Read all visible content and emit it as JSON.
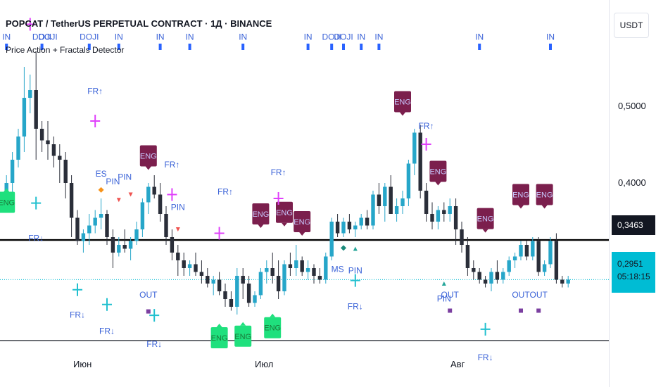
{
  "header": {
    "symbol_title": "POPCAT / TetherUS PERPETUAL CONTRACT · 1Д · BINANCE",
    "indicator_title": "Price Action + Fractals Detector"
  },
  "price_scale": {
    "unit_button": "USDT",
    "ticks": [
      "0,5000",
      "0,4000"
    ],
    "hline_label": "0,3463",
    "last_price": "0,2951",
    "countdown": "05:18:15"
  },
  "time_axis": {
    "labels": [
      "Июн",
      "Июл",
      "Авг"
    ]
  },
  "colors": {
    "up": "#26a6c9",
    "down": "#2a2e39",
    "eng_bear": "#7b1f4d",
    "eng_bull": "#1fe07d",
    "label_text": "#3a62d7",
    "inside_marker": "#2962ff",
    "fractal_up": "#e040fb",
    "fractal_down": "#22c0cf",
    "last_line": "#00bcd4"
  },
  "chart_data": {
    "type": "candlestick",
    "ylim": [
      0.22,
      0.62
    ],
    "hline": 0.3463,
    "last": 0.2951,
    "candles": [
      {
        "o": 0.4,
        "h": 0.43,
        "l": 0.39,
        "c": 0.42
      },
      {
        "o": 0.42,
        "h": 0.46,
        "l": 0.4,
        "c": 0.45
      },
      {
        "o": 0.45,
        "h": 0.49,
        "l": 0.44,
        "c": 0.48
      },
      {
        "o": 0.48,
        "h": 0.57,
        "l": 0.46,
        "c": 0.53
      },
      {
        "o": 0.53,
        "h": 0.56,
        "l": 0.51,
        "c": 0.54
      },
      {
        "o": 0.54,
        "h": 0.59,
        "l": 0.45,
        "c": 0.49
      },
      {
        "o": 0.49,
        "h": 0.5,
        "l": 0.46,
        "c": 0.475
      },
      {
        "o": 0.475,
        "h": 0.5,
        "l": 0.45,
        "c": 0.47
      },
      {
        "o": 0.47,
        "h": 0.48,
        "l": 0.44,
        "c": 0.455
      },
      {
        "o": 0.455,
        "h": 0.47,
        "l": 0.42,
        "c": 0.45
      },
      {
        "o": 0.45,
        "h": 0.46,
        "l": 0.4,
        "c": 0.42
      },
      {
        "o": 0.42,
        "h": 0.43,
        "l": 0.35,
        "c": 0.375
      },
      {
        "o": 0.375,
        "h": 0.385,
        "l": 0.34,
        "c": 0.345
      },
      {
        "o": 0.345,
        "h": 0.36,
        "l": 0.33,
        "c": 0.355
      },
      {
        "o": 0.355,
        "h": 0.38,
        "l": 0.34,
        "c": 0.365
      },
      {
        "o": 0.365,
        "h": 0.385,
        "l": 0.355,
        "c": 0.375
      },
      {
        "o": 0.375,
        "h": 0.4,
        "l": 0.36,
        "c": 0.38
      },
      {
        "o": 0.38,
        "h": 0.385,
        "l": 0.34,
        "c": 0.35
      },
      {
        "o": 0.35,
        "h": 0.36,
        "l": 0.31,
        "c": 0.33
      },
      {
        "o": 0.33,
        "h": 0.35,
        "l": 0.325,
        "c": 0.34
      },
      {
        "o": 0.34,
        "h": 0.36,
        "l": 0.33,
        "c": 0.335
      },
      {
        "o": 0.335,
        "h": 0.35,
        "l": 0.32,
        "c": 0.345
      },
      {
        "o": 0.345,
        "h": 0.37,
        "l": 0.34,
        "c": 0.36
      },
      {
        "o": 0.36,
        "h": 0.4,
        "l": 0.35,
        "c": 0.395
      },
      {
        "o": 0.395,
        "h": 0.42,
        "l": 0.38,
        "c": 0.415
      },
      {
        "o": 0.415,
        "h": 0.43,
        "l": 0.4,
        "c": 0.405
      },
      {
        "o": 0.405,
        "h": 0.42,
        "l": 0.37,
        "c": 0.38
      },
      {
        "o": 0.38,
        "h": 0.39,
        "l": 0.34,
        "c": 0.35
      },
      {
        "o": 0.35,
        "h": 0.36,
        "l": 0.32,
        "c": 0.33
      },
      {
        "o": 0.33,
        "h": 0.34,
        "l": 0.3,
        "c": 0.32
      },
      {
        "o": 0.32,
        "h": 0.33,
        "l": 0.3,
        "c": 0.31
      },
      {
        "o": 0.31,
        "h": 0.32,
        "l": 0.3,
        "c": 0.315
      },
      {
        "o": 0.315,
        "h": 0.33,
        "l": 0.3,
        "c": 0.305
      },
      {
        "o": 0.305,
        "h": 0.32,
        "l": 0.29,
        "c": 0.3
      },
      {
        "o": 0.3,
        "h": 0.31,
        "l": 0.285,
        "c": 0.29
      },
      {
        "o": 0.29,
        "h": 0.3,
        "l": 0.275,
        "c": 0.295
      },
      {
        "o": 0.295,
        "h": 0.305,
        "l": 0.275,
        "c": 0.28
      },
      {
        "o": 0.28,
        "h": 0.29,
        "l": 0.26,
        "c": 0.27
      },
      {
        "o": 0.27,
        "h": 0.28,
        "l": 0.255,
        "c": 0.26
      },
      {
        "o": 0.26,
        "h": 0.31,
        "l": 0.25,
        "c": 0.3
      },
      {
        "o": 0.3,
        "h": 0.31,
        "l": 0.27,
        "c": 0.29
      },
      {
        "o": 0.29,
        "h": 0.3,
        "l": 0.26,
        "c": 0.265
      },
      {
        "o": 0.265,
        "h": 0.28,
        "l": 0.26,
        "c": 0.275
      },
      {
        "o": 0.275,
        "h": 0.31,
        "l": 0.27,
        "c": 0.305
      },
      {
        "o": 0.305,
        "h": 0.32,
        "l": 0.29,
        "c": 0.31
      },
      {
        "o": 0.31,
        "h": 0.33,
        "l": 0.29,
        "c": 0.3
      },
      {
        "o": 0.3,
        "h": 0.32,
        "l": 0.27,
        "c": 0.28
      },
      {
        "o": 0.28,
        "h": 0.32,
        "l": 0.275,
        "c": 0.315
      },
      {
        "o": 0.315,
        "h": 0.33,
        "l": 0.3,
        "c": 0.31
      },
      {
        "o": 0.31,
        "h": 0.34,
        "l": 0.3,
        "c": 0.32
      },
      {
        "o": 0.32,
        "h": 0.325,
        "l": 0.3,
        "c": 0.305
      },
      {
        "o": 0.305,
        "h": 0.32,
        "l": 0.295,
        "c": 0.31
      },
      {
        "o": 0.31,
        "h": 0.315,
        "l": 0.29,
        "c": 0.3
      },
      {
        "o": 0.3,
        "h": 0.31,
        "l": 0.29,
        "c": 0.295
      },
      {
        "o": 0.295,
        "h": 0.33,
        "l": 0.29,
        "c": 0.325
      },
      {
        "o": 0.325,
        "h": 0.375,
        "l": 0.32,
        "c": 0.37
      },
      {
        "o": 0.37,
        "h": 0.38,
        "l": 0.35,
        "c": 0.355
      },
      {
        "o": 0.355,
        "h": 0.375,
        "l": 0.35,
        "c": 0.37
      },
      {
        "o": 0.37,
        "h": 0.38,
        "l": 0.355,
        "c": 0.36
      },
      {
        "o": 0.36,
        "h": 0.37,
        "l": 0.35,
        "c": 0.365
      },
      {
        "o": 0.365,
        "h": 0.38,
        "l": 0.36,
        "c": 0.375
      },
      {
        "o": 0.375,
        "h": 0.385,
        "l": 0.36,
        "c": 0.365
      },
      {
        "o": 0.365,
        "h": 0.41,
        "l": 0.36,
        "c": 0.405
      },
      {
        "o": 0.405,
        "h": 0.42,
        "l": 0.38,
        "c": 0.39
      },
      {
        "o": 0.39,
        "h": 0.42,
        "l": 0.37,
        "c": 0.415
      },
      {
        "o": 0.415,
        "h": 0.43,
        "l": 0.38,
        "c": 0.38
      },
      {
        "o": 0.38,
        "h": 0.4,
        "l": 0.37,
        "c": 0.39
      },
      {
        "o": 0.39,
        "h": 0.41,
        "l": 0.38,
        "c": 0.4
      },
      {
        "o": 0.4,
        "h": 0.45,
        "l": 0.39,
        "c": 0.445
      },
      {
        "o": 0.445,
        "h": 0.49,
        "l": 0.43,
        "c": 0.485
      },
      {
        "o": 0.485,
        "h": 0.495,
        "l": 0.4,
        "c": 0.41
      },
      {
        "o": 0.41,
        "h": 0.42,
        "l": 0.37,
        "c": 0.38
      },
      {
        "o": 0.38,
        "h": 0.395,
        "l": 0.36,
        "c": 0.37
      },
      {
        "o": 0.37,
        "h": 0.39,
        "l": 0.36,
        "c": 0.385
      },
      {
        "o": 0.385,
        "h": 0.395,
        "l": 0.37,
        "c": 0.38
      },
      {
        "o": 0.38,
        "h": 0.4,
        "l": 0.37,
        "c": 0.39
      },
      {
        "o": 0.39,
        "h": 0.4,
        "l": 0.34,
        "c": 0.36
      },
      {
        "o": 0.36,
        "h": 0.37,
        "l": 0.33,
        "c": 0.34
      },
      {
        "o": 0.34,
        "h": 0.35,
        "l": 0.3,
        "c": 0.31
      },
      {
        "o": 0.31,
        "h": 0.32,
        "l": 0.295,
        "c": 0.305
      },
      {
        "o": 0.305,
        "h": 0.31,
        "l": 0.29,
        "c": 0.295
      },
      {
        "o": 0.295,
        "h": 0.3,
        "l": 0.285,
        "c": 0.29
      },
      {
        "o": 0.29,
        "h": 0.31,
        "l": 0.28,
        "c": 0.305
      },
      {
        "o": 0.305,
        "h": 0.32,
        "l": 0.29,
        "c": 0.295
      },
      {
        "o": 0.295,
        "h": 0.31,
        "l": 0.29,
        "c": 0.305
      },
      {
        "o": 0.305,
        "h": 0.325,
        "l": 0.3,
        "c": 0.32
      },
      {
        "o": 0.32,
        "h": 0.33,
        "l": 0.31,
        "c": 0.325
      },
      {
        "o": 0.325,
        "h": 0.345,
        "l": 0.32,
        "c": 0.34
      },
      {
        "o": 0.34,
        "h": 0.345,
        "l": 0.32,
        "c": 0.325
      },
      {
        "o": 0.325,
        "h": 0.35,
        "l": 0.32,
        "c": 0.345
      },
      {
        "o": 0.345,
        "h": 0.35,
        "l": 0.3,
        "c": 0.305
      },
      {
        "o": 0.305,
        "h": 0.32,
        "l": 0.3,
        "c": 0.315
      },
      {
        "o": 0.315,
        "h": 0.35,
        "l": 0.31,
        "c": 0.345
      },
      {
        "o": 0.345,
        "h": 0.355,
        "l": 0.29,
        "c": 0.295
      },
      {
        "o": 0.295,
        "h": 0.3,
        "l": 0.285,
        "c": 0.29
      },
      {
        "o": 0.29,
        "h": 0.3,
        "l": 0.285,
        "c": 0.2951
      }
    ],
    "signals": [
      {
        "type": "text",
        "bar": 0,
        "text": "IN",
        "y": 0.605
      },
      {
        "type": "text",
        "bar": 6,
        "text": "DOJI",
        "y": 0.605
      },
      {
        "type": "text",
        "bar": 7,
        "text": "DOJI",
        "y": 0.605
      },
      {
        "type": "text",
        "bar": 14,
        "text": "DOJI",
        "y": 0.605
      },
      {
        "type": "text",
        "bar": 19,
        "text": "IN",
        "y": 0.605
      },
      {
        "type": "text",
        "bar": 26,
        "text": "IN",
        "y": 0.605
      },
      {
        "type": "text",
        "bar": 31,
        "text": "IN",
        "y": 0.605
      },
      {
        "type": "text",
        "bar": 40,
        "text": "IN",
        "y": 0.605
      },
      {
        "type": "text",
        "bar": 51,
        "text": "IN",
        "y": 0.605
      },
      {
        "type": "text",
        "bar": 55,
        "text": "DOJI",
        "y": 0.605
      },
      {
        "type": "text",
        "bar": 57,
        "text": "DOJI",
        "y": 0.605
      },
      {
        "type": "text",
        "bar": 60,
        "text": "IN",
        "y": 0.605
      },
      {
        "type": "text",
        "bar": 63,
        "text": "IN",
        "y": 0.605
      },
      {
        "type": "text",
        "bar": 80,
        "text": "IN",
        "y": 0.605
      },
      {
        "type": "text",
        "bar": 92,
        "text": "IN",
        "y": 0.605
      },
      {
        "type": "text",
        "bar": 15,
        "text": "FR↑",
        "y": 0.535
      },
      {
        "type": "text",
        "bar": 16,
        "text": "ES",
        "y": 0.428
      },
      {
        "type": "text",
        "bar": 18,
        "text": "PIN",
        "y": 0.418
      },
      {
        "type": "text",
        "bar": 20,
        "text": "PIN",
        "y": 0.424
      },
      {
        "type": "text",
        "bar": 28,
        "text": "FR↑",
        "y": 0.44
      },
      {
        "type": "text",
        "bar": 29,
        "text": "PIN",
        "y": 0.385
      },
      {
        "type": "text",
        "bar": 37,
        "text": "FR↑",
        "y": 0.405
      },
      {
        "type": "text",
        "bar": 46,
        "text": "FR↑",
        "y": 0.43
      },
      {
        "type": "text",
        "bar": 71,
        "text": "FR↑",
        "y": 0.49
      },
      {
        "type": "text",
        "bar": 5,
        "text": "FR↓",
        "y": 0.345
      },
      {
        "type": "text",
        "bar": 12,
        "text": "FR↓",
        "y": 0.246
      },
      {
        "type": "text",
        "bar": 17,
        "text": "FR↓",
        "y": 0.225
      },
      {
        "type": "text",
        "bar": 24,
        "text": "OUT",
        "y": 0.272
      },
      {
        "type": "text",
        "bar": 25,
        "text": "FR↓",
        "y": 0.208
      },
      {
        "type": "text",
        "bar": 56,
        "text": "MS",
        "y": 0.305
      },
      {
        "type": "text",
        "bar": 59,
        "text": "PIN",
        "y": 0.303
      },
      {
        "type": "text",
        "bar": 59,
        "text": "FR↓",
        "y": 0.257
      },
      {
        "type": "text",
        "bar": 74,
        "text": "PIN",
        "y": 0.267
      },
      {
        "type": "text",
        "bar": 75,
        "text": "OUT",
        "y": 0.272
      },
      {
        "type": "text",
        "bar": 81,
        "text": "FR↓",
        "y": 0.191
      },
      {
        "type": "text",
        "bar": 87,
        "text": "OUT",
        "y": 0.272
      },
      {
        "type": "text",
        "bar": 90,
        "text": "OUT",
        "y": 0.272
      },
      {
        "type": "eng_bear",
        "bar": 24,
        "text": "ENG",
        "y": 0.455
      },
      {
        "type": "eng_bear",
        "bar": 43,
        "text": "ENG",
        "y": 0.38
      },
      {
        "type": "eng_bear",
        "bar": 47,
        "text": "ENG",
        "y": 0.382
      },
      {
        "type": "eng_bear",
        "bar": 50,
        "text": "ENG",
        "y": 0.37
      },
      {
        "type": "eng_bear",
        "bar": 67,
        "text": "ENG",
        "y": 0.525
      },
      {
        "type": "eng_bear",
        "bar": 73,
        "text": "ENG",
        "y": 0.435
      },
      {
        "type": "eng_bear",
        "bar": 81,
        "text": "ENG",
        "y": 0.374
      },
      {
        "type": "eng_bear",
        "bar": 87,
        "text": "ENG",
        "y": 0.405
      },
      {
        "type": "eng_bear",
        "bar": 91,
        "text": "ENG",
        "y": 0.405
      },
      {
        "type": "eng_bull",
        "bar": 0,
        "text": "ENG",
        "y": 0.395
      },
      {
        "type": "eng_bull",
        "bar": 36,
        "text": "ENG",
        "y": 0.22
      },
      {
        "type": "eng_bull",
        "bar": 40,
        "text": "ENG",
        "y": 0.222
      },
      {
        "type": "eng_bull",
        "bar": 45,
        "text": "ENG",
        "y": 0.233
      },
      {
        "type": "inside",
        "bars": [
          0,
          6,
          14,
          19,
          26,
          31,
          40,
          51,
          55,
          57,
          60,
          63,
          80,
          92
        ]
      },
      {
        "type": "cross_up",
        "bar": 4,
        "y": 0.625
      },
      {
        "type": "cross_up",
        "bar": 15,
        "y": 0.5
      },
      {
        "type": "cross_up",
        "bar": 28,
        "y": 0.405
      },
      {
        "type": "cross_up",
        "bar": 36,
        "y": 0.355
      },
      {
        "type": "cross_up",
        "bar": 46,
        "y": 0.4
      },
      {
        "type": "cross_up",
        "bar": 71,
        "y": 0.47
      },
      {
        "type": "cross_down",
        "bar": 5,
        "y": 0.394
      },
      {
        "type": "cross_down",
        "bar": 12,
        "y": 0.282
      },
      {
        "type": "cross_down",
        "bar": 17,
        "y": 0.263
      },
      {
        "type": "cross_down",
        "bar": 25,
        "y": 0.249
      },
      {
        "type": "cross_down",
        "bar": 59,
        "y": 0.294
      },
      {
        "type": "cross_down",
        "bar": 81,
        "y": 0.231
      },
      {
        "type": "tri_down",
        "bar": 19,
        "y": 0.398
      },
      {
        "type": "tri_down",
        "bar": 21,
        "y": 0.405
      },
      {
        "type": "tri_down",
        "bar": 29,
        "y": 0.36
      },
      {
        "type": "tri_up",
        "bar": 59,
        "y": 0.335
      },
      {
        "type": "tri_up",
        "bar": 74,
        "y": 0.29
      },
      {
        "type": "diamond",
        "bar": 16,
        "y": 0.411,
        "color": "#f7931a"
      },
      {
        "type": "diamond",
        "bar": 57,
        "y": 0.336,
        "color": "#1a8a7a"
      },
      {
        "type": "square",
        "bar": 24,
        "y": 0.254
      },
      {
        "type": "square",
        "bar": 75,
        "y": 0.255
      },
      {
        "type": "square",
        "bar": 87,
        "y": 0.255
      },
      {
        "type": "square",
        "bar": 90,
        "y": 0.255
      }
    ]
  }
}
